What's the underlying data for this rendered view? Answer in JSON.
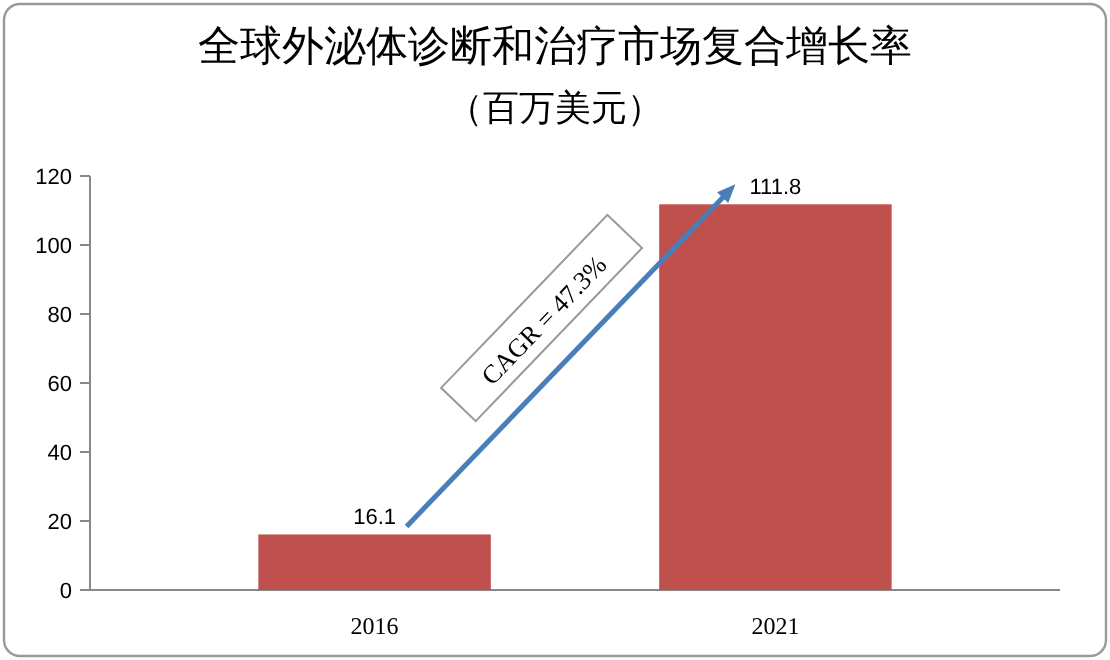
{
  "chart_data": {
    "type": "bar",
    "title": "全球外泌体诊断和治疗市场复合增长率",
    "subtitle": "（百万美元）",
    "categories": [
      "2016",
      "2021"
    ],
    "values": [
      16.1,
      111.8
    ],
    "color": "#c0504d",
    "ylim": [
      0,
      120
    ],
    "yticks": [
      0,
      20,
      40,
      60,
      80,
      100,
      120
    ],
    "grid": false,
    "data_labels": true,
    "annotations": [
      "CAGR = 47.3%"
    ]
  }
}
